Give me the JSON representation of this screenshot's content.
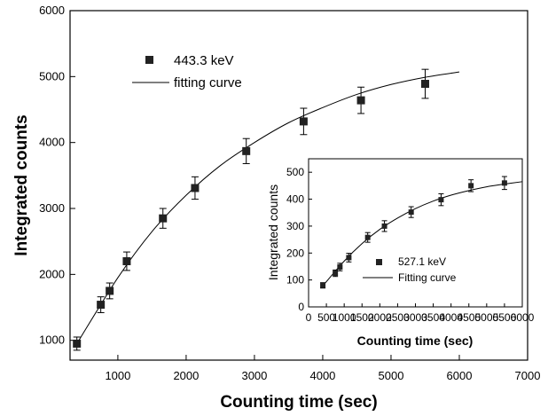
{
  "chart_data": [
    {
      "type": "scatter",
      "xlabel": "Counting time (sec)",
      "ylabel": "Integrated counts",
      "xlim": [
        300,
        7000
      ],
      "ylim": [
        700,
        6000
      ],
      "xticks": [
        1000,
        2000,
        3000,
        4000,
        5000,
        6000,
        7000
      ],
      "yticks": [
        1000,
        2000,
        3000,
        4000,
        5000,
        6000
      ],
      "legend_position": "top-left",
      "series": [
        {
          "name": "443.3 keV",
          "marker": "square",
          "x": [
            400,
            750,
            880,
            1130,
            1660,
            2130,
            2880,
            3720,
            4560,
            5500
          ],
          "y": [
            950,
            1540,
            1750,
            2200,
            2850,
            3310,
            3870,
            4320,
            4640,
            4890
          ],
          "yerr": [
            100,
            120,
            120,
            140,
            150,
            170,
            190,
            200,
            200,
            220
          ]
        },
        {
          "name": "fitting curve",
          "type": "line",
          "x": [
            400,
            1000,
            1500,
            2000,
            2500,
            3000,
            3500,
            4000,
            4500,
            5000,
            5500,
            6000
          ],
          "y": [
            950,
            1950,
            2650,
            3200,
            3650,
            4000,
            4300,
            4530,
            4730,
            4880,
            4990,
            5070
          ]
        }
      ]
    },
    {
      "type": "scatter",
      "inset": true,
      "xlabel": "Counting time (sec)",
      "ylabel": "Integrated counts",
      "xlim": [
        0,
        6000
      ],
      "ylim": [
        0,
        550
      ],
      "xticks": [
        0,
        500,
        1000,
        1500,
        2000,
        2500,
        3000,
        3500,
        4000,
        4500,
        5000,
        5500,
        6000
      ],
      "yticks": [
        0,
        100,
        200,
        300,
        400,
        500
      ],
      "legend_position": "bottom-center",
      "series": [
        {
          "name": "527.1 keV",
          "marker": "square",
          "x": [
            400,
            750,
            880,
            1130,
            1660,
            2130,
            2880,
            3720,
            4560,
            5500
          ],
          "y": [
            80,
            125,
            148,
            183,
            258,
            300,
            352,
            398,
            450,
            460
          ],
          "yerr": [
            10,
            12,
            14,
            16,
            18,
            20,
            20,
            22,
            22,
            24
          ]
        },
        {
          "name": "Fitting curve",
          "type": "line",
          "x": [
            400,
            1000,
            1500,
            2000,
            2500,
            3000,
            3500,
            4000,
            4500,
            5000,
            5500,
            6000
          ],
          "y": [
            78,
            170,
            235,
            288,
            330,
            365,
            393,
            415,
            432,
            446,
            456,
            465
          ]
        }
      ]
    }
  ]
}
